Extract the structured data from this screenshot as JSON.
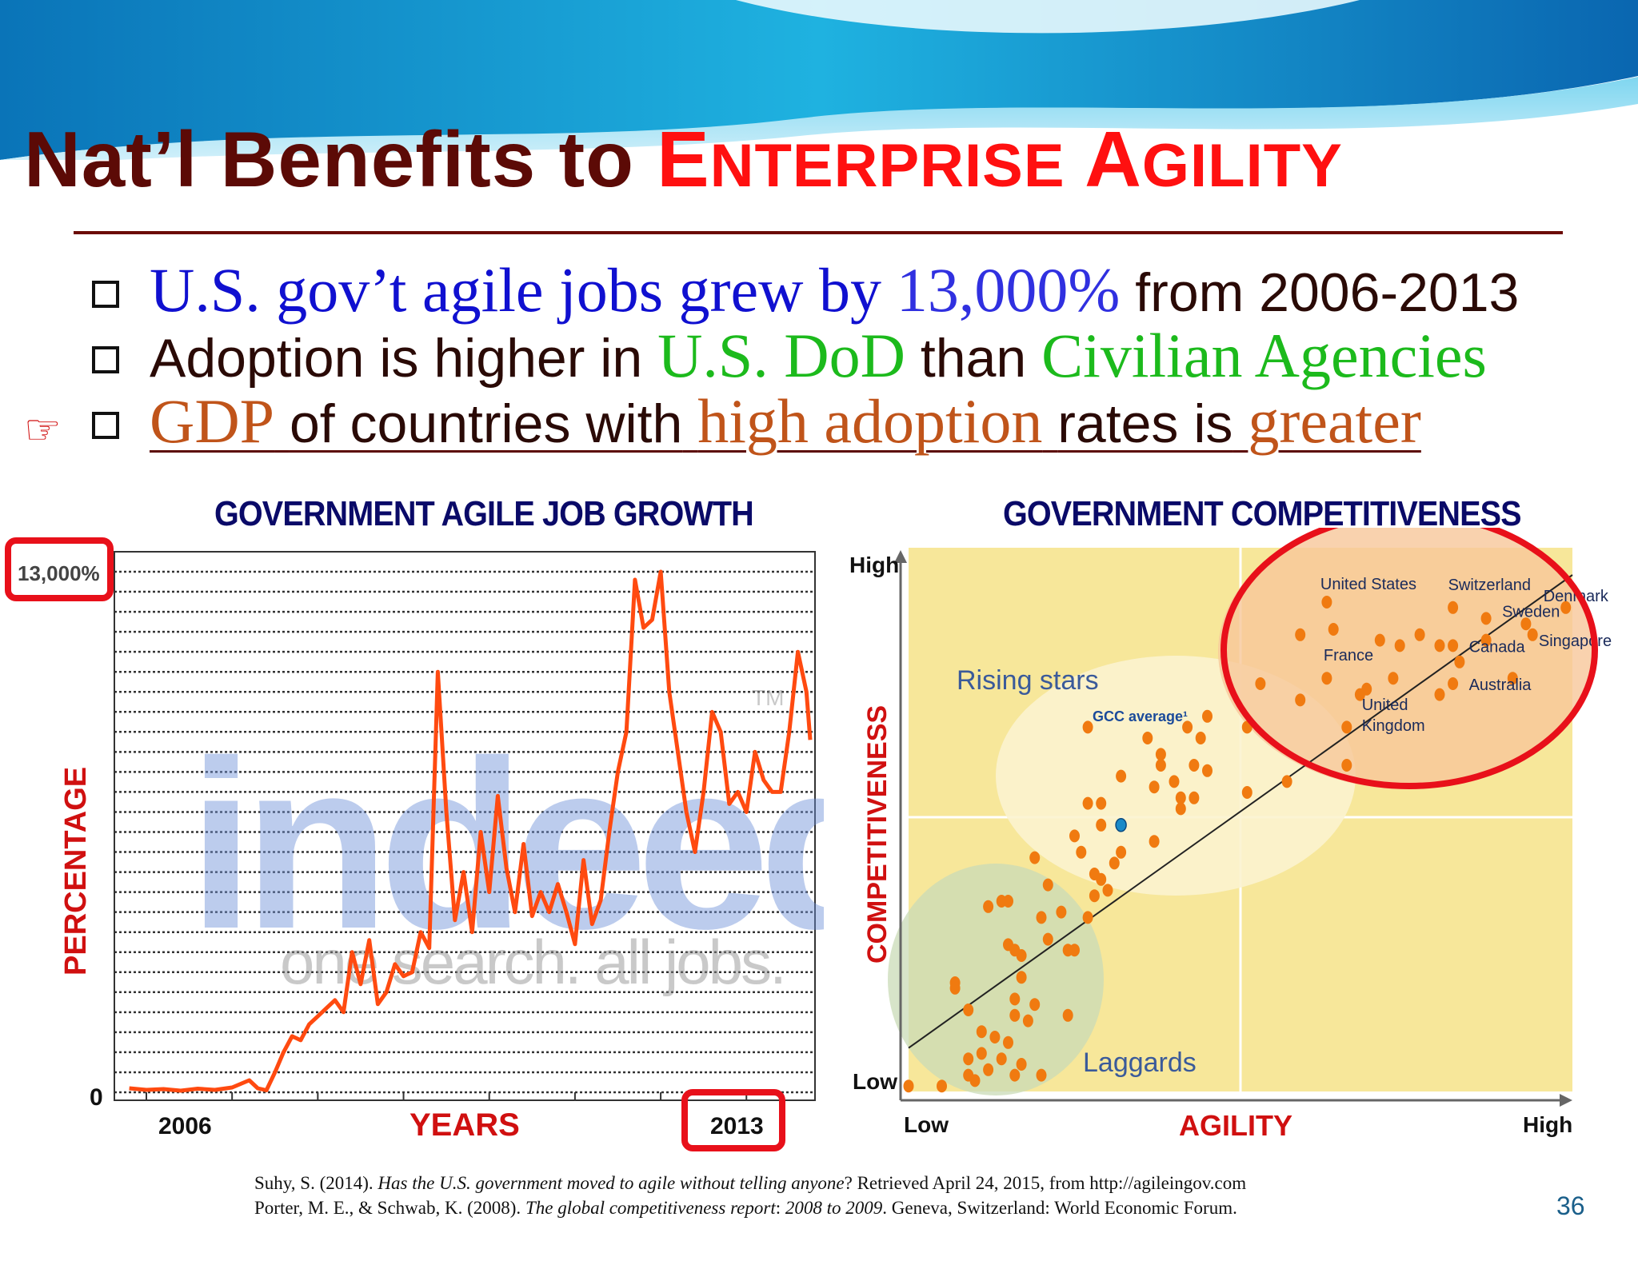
{
  "slide": {
    "title_part1": "Nat’l Benefits to",
    "title_part2_cap1": "E",
    "title_part2_rest1": "NTERPRISE",
    "title_part2_cap2": "A",
    "title_part2_rest2": "GILITY",
    "page_number": "36",
    "pointer_icon": "hand-pointing-right-icon"
  },
  "bullets": [
    {
      "seg1": "U.S. gov’t agile jobs grew by",
      "seg2": "13,000%",
      "seg3": "from 2006-2013"
    },
    {
      "seg1": "Adoption is higher in",
      "seg2": "U.S. DoD",
      "seg3": "than",
      "seg4": "Civilian Agencies"
    },
    {
      "seg1": "GDP",
      "seg2": "of countries with",
      "seg3": "high adoption",
      "seg4": "rates is",
      "seg5": "greater"
    }
  ],
  "references": [
    {
      "pre": "Suhy, S. (2014). ",
      "italic": "Has the U.S. government moved to agile without telling anyone",
      "post": "? Retrieved April 24, 2015, from http://agileingov.com"
    },
    {
      "pre": "Porter, M. E., & Schwab, K. (2008). ",
      "italic": "The global competitiveness report",
      "mid": ": ",
      "italic2": "2008 to 2009",
      "post": ". Geneva, Switzerland: World Economic Forum."
    }
  ],
  "colors": {
    "title_dark": "#5c0a06",
    "title_accent": "#ff1010",
    "chart_title": "#0a0a68",
    "axis_label": "#d01010",
    "line": "#ff4a10",
    "dot": "#f07a10",
    "highlight": "#e8101a"
  },
  "chart_data": [
    {
      "type": "line",
      "title": "GOVERNMENT AGILE JOB GROWTH",
      "xlabel": "YEARS",
      "ylabel": "PERCENTAGE",
      "x_ticks": [
        "2006",
        "2013"
      ],
      "y_ticks": [
        "0",
        "13,000%"
      ],
      "ylim": [
        0,
        13000
      ],
      "xlim": [
        2006,
        2013.8
      ],
      "watermark": {
        "brand": "indeed",
        "tagline": "one search. all jobs.",
        "tm": "TM"
      },
      "highlighted_labels": [
        "13,000%",
        "2013"
      ],
      "series": [
        {
          "x": [
            2005.8,
            2006.0,
            2006.2,
            2006.4,
            2006.6,
            2006.8,
            2007.0,
            2007.2,
            2007.3,
            2007.4,
            2007.5,
            2007.6,
            2007.7,
            2007.8,
            2007.9,
            2008.0,
            2008.1,
            2008.2,
            2008.3,
            2008.4,
            2008.5,
            2008.6,
            2008.7,
            2008.8,
            2008.9,
            2009.0,
            2009.1,
            2009.2,
            2009.3,
            2009.4,
            2009.5,
            2009.6,
            2009.7,
            2009.8,
            2009.9,
            2010.0,
            2010.1,
            2010.2,
            2010.3,
            2010.4,
            2010.5,
            2010.6,
            2010.7,
            2010.8,
            2010.9,
            2011.0,
            2011.1,
            2011.2,
            2011.3,
            2011.4,
            2011.5,
            2011.6,
            2011.7,
            2011.8,
            2011.9,
            2012.0,
            2012.1,
            2012.2,
            2012.3,
            2012.4,
            2012.5,
            2012.6,
            2012.7,
            2012.8,
            2012.9,
            2013.0,
            2013.1,
            2013.2,
            2013.3,
            2013.4,
            2013.5,
            2013.6,
            2013.7,
            2013.8
          ],
          "y": [
            100,
            60,
            80,
            40,
            90,
            60,
            120,
            300,
            100,
            50,
            500,
            1000,
            1400,
            1300,
            1700,
            1900,
            2100,
            2300,
            2000,
            3500,
            2700,
            3800,
            2200,
            2500,
            3200,
            2900,
            3000,
            4000,
            3600,
            10500,
            7000,
            4300,
            5500,
            4000,
            6500,
            5000,
            7400,
            5600,
            4500,
            6200,
            4400,
            5000,
            4500,
            5200,
            4500,
            3700,
            5800,
            4200,
            4800,
            6500,
            8000,
            9000,
            12800,
            11600,
            11800,
            13000,
            10000,
            8500,
            7000,
            6000,
            7500,
            9500,
            9000,
            7200,
            7500,
            7000,
            8500,
            7800,
            7500,
            7500,
            9000,
            11000,
            10000,
            8800
          ],
          "style": "bold orange-red line"
        }
      ]
    },
    {
      "type": "scatter",
      "title": "GOVERNMENT COMPETITIVENESS",
      "xlabel": "AGILITY",
      "ylabel": "COMPETITIVENESS",
      "x_ticks": [
        "Low",
        "High"
      ],
      "y_ticks": [
        "High",
        "Low"
      ],
      "xlim": [
        0,
        100
      ],
      "ylim": [
        0,
        100
      ],
      "regions": [
        {
          "label": "Rising stars"
        },
        {
          "label": "Laggards"
        },
        {
          "label": "GCC average¹"
        }
      ],
      "labeled_points": [
        {
          "name": "United States",
          "x": 63,
          "y": 90
        },
        {
          "name": "Switzerland",
          "x": 82,
          "y": 89
        },
        {
          "name": "Denmark",
          "x": 99,
          "y": 89
        },
        {
          "name": "Sweden",
          "x": 87,
          "y": 87
        },
        {
          "name": "Singapore",
          "x": 93,
          "y": 86
        },
        {
          "name": "Canada",
          "x": 82,
          "y": 82
        },
        {
          "name": "France",
          "x": 63,
          "y": 76
        },
        {
          "name": "Australia",
          "x": 82,
          "y": 75
        },
        {
          "name": "United Kingdom",
          "x": 69,
          "y": 74
        }
      ],
      "points": [
        {
          "x": 0,
          "y": 1
        },
        {
          "x": 5,
          "y": 1
        },
        {
          "x": 9,
          "y": 3
        },
        {
          "x": 9,
          "y": 6
        },
        {
          "x": 10,
          "y": 2
        },
        {
          "x": 12,
          "y": 4
        },
        {
          "x": 11,
          "y": 7
        },
        {
          "x": 11,
          "y": 11
        },
        {
          "x": 13,
          "y": 10
        },
        {
          "x": 14,
          "y": 6
        },
        {
          "x": 15,
          "y": 9
        },
        {
          "x": 16,
          "y": 14
        },
        {
          "x": 16,
          "y": 3
        },
        {
          "x": 17,
          "y": 5
        },
        {
          "x": 16,
          "y": 17
        },
        {
          "x": 17,
          "y": 21
        },
        {
          "x": 17,
          "y": 25
        },
        {
          "x": 18,
          "y": 13
        },
        {
          "x": 19,
          "y": 16
        },
        {
          "x": 20,
          "y": 3
        },
        {
          "x": 7,
          "y": 20
        },
        {
          "x": 7,
          "y": 19
        },
        {
          "x": 9,
          "y": 15
        },
        {
          "x": 14,
          "y": 35
        },
        {
          "x": 15,
          "y": 35
        },
        {
          "x": 12,
          "y": 34
        },
        {
          "x": 15,
          "y": 27
        },
        {
          "x": 16,
          "y": 26
        },
        {
          "x": 19,
          "y": 43
        },
        {
          "x": 21,
          "y": 38
        },
        {
          "x": 20,
          "y": 32
        },
        {
          "x": 21,
          "y": 28
        },
        {
          "x": 23,
          "y": 33
        },
        {
          "x": 24,
          "y": 26
        },
        {
          "x": 24,
          "y": 14
        },
        {
          "x": 25,
          "y": 26
        },
        {
          "x": 27,
          "y": 32
        },
        {
          "x": 25,
          "y": 47
        },
        {
          "x": 28,
          "y": 36
        },
        {
          "x": 28,
          "y": 40
        },
        {
          "x": 29,
          "y": 39
        },
        {
          "x": 30,
          "y": 37
        },
        {
          "x": 29,
          "y": 49
        },
        {
          "x": 31,
          "y": 42
        },
        {
          "x": 29,
          "y": 53
        },
        {
          "x": 32,
          "y": 58
        },
        {
          "x": 32,
          "y": 44
        },
        {
          "x": 37,
          "y": 56
        },
        {
          "x": 38,
          "y": 60
        },
        {
          "x": 37,
          "y": 46
        },
        {
          "x": 27,
          "y": 67
        },
        {
          "x": 36,
          "y": 65
        },
        {
          "x": 38,
          "y": 62
        },
        {
          "x": 43,
          "y": 60
        },
        {
          "x": 43,
          "y": 54
        },
        {
          "x": 41,
          "y": 54
        },
        {
          "x": 41,
          "y": 52
        },
        {
          "x": 40,
          "y": 57
        },
        {
          "x": 44,
          "y": 65
        },
        {
          "x": 45,
          "y": 69
        },
        {
          "x": 45,
          "y": 59
        },
        {
          "x": 26,
          "y": 44
        },
        {
          "x": 27,
          "y": 53
        },
        {
          "x": 42,
          "y": 67
        },
        {
          "x": 51,
          "y": 55
        },
        {
          "x": 51,
          "y": 67
        },
        {
          "x": 53,
          "y": 75
        },
        {
          "x": 57,
          "y": 57
        },
        {
          "x": 59,
          "y": 72
        },
        {
          "x": 59,
          "y": 84
        },
        {
          "x": 66,
          "y": 60
        },
        {
          "x": 66,
          "y": 67
        },
        {
          "x": 64,
          "y": 85
        },
        {
          "x": 68,
          "y": 73
        },
        {
          "x": 71,
          "y": 83
        },
        {
          "x": 73,
          "y": 76
        },
        {
          "x": 77,
          "y": 84
        },
        {
          "x": 83,
          "y": 79
        },
        {
          "x": 74,
          "y": 82
        },
        {
          "x": 80,
          "y": 82
        },
        {
          "x": 80,
          "y": 73
        },
        {
          "x": 87,
          "y": 83
        },
        {
          "x": 91,
          "y": 76
        },
        {
          "x": 94,
          "y": 84
        }
      ],
      "gcc_average": {
        "x": 32,
        "y": 49
      },
      "trend_line": {
        "from": [
          0,
          8
        ],
        "to": [
          100,
          95
        ]
      },
      "highlighted_area": "top-right"
    }
  ]
}
